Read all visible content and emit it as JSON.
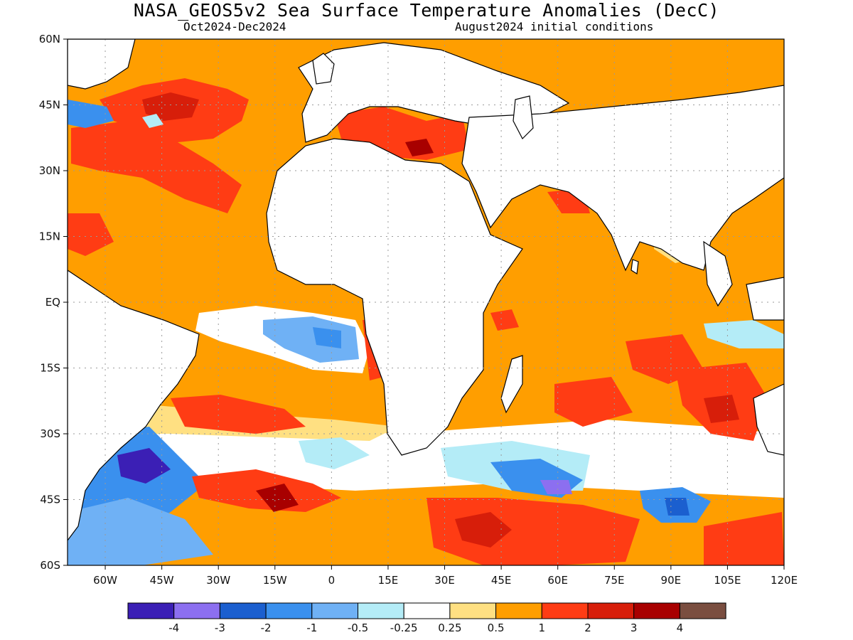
{
  "title": "NASA_GEOS5v2 Sea Surface Temperature Anomalies (DecC)",
  "subtitle_left": "Oct2024-Dec2024",
  "subtitle_right": "August2024 initial conditions",
  "map": {
    "lat_range": [
      -60,
      60
    ],
    "lon_range": [
      -70,
      120
    ],
    "grid": true,
    "lat_labels": [
      "60N",
      "45N",
      "30N",
      "15N",
      "EQ",
      "15S",
      "30S",
      "45S",
      "60S"
    ],
    "lon_labels": [
      "60W",
      "45W",
      "30W",
      "15W",
      "0",
      "15E",
      "30E",
      "45E",
      "60E",
      "75E",
      "90E",
      "105E",
      "120E"
    ],
    "lat_values": [
      60,
      45,
      30,
      15,
      0,
      -15,
      -30,
      -45,
      -60
    ],
    "lon_values": [
      -60,
      -45,
      -30,
      -15,
      0,
      15,
      30,
      45,
      60,
      75,
      90,
      105,
      120
    ]
  },
  "legend": {
    "colors": [
      "#3b1fb5",
      "#8c6ff0",
      "#1b5fcf",
      "#3a90ee",
      "#6fb1f5",
      "#b4ecf7",
      "#ffffff",
      "#ffe082",
      "#ff9e00",
      "#ff3c14",
      "#d71e0a",
      "#a80000",
      "#7a4e40"
    ],
    "labels": [
      "-4",
      "-3",
      "-2",
      "-1",
      "-0.5",
      "-0.25",
      "0.25",
      "0.5",
      "1",
      "2",
      "3",
      "4"
    ]
  }
}
